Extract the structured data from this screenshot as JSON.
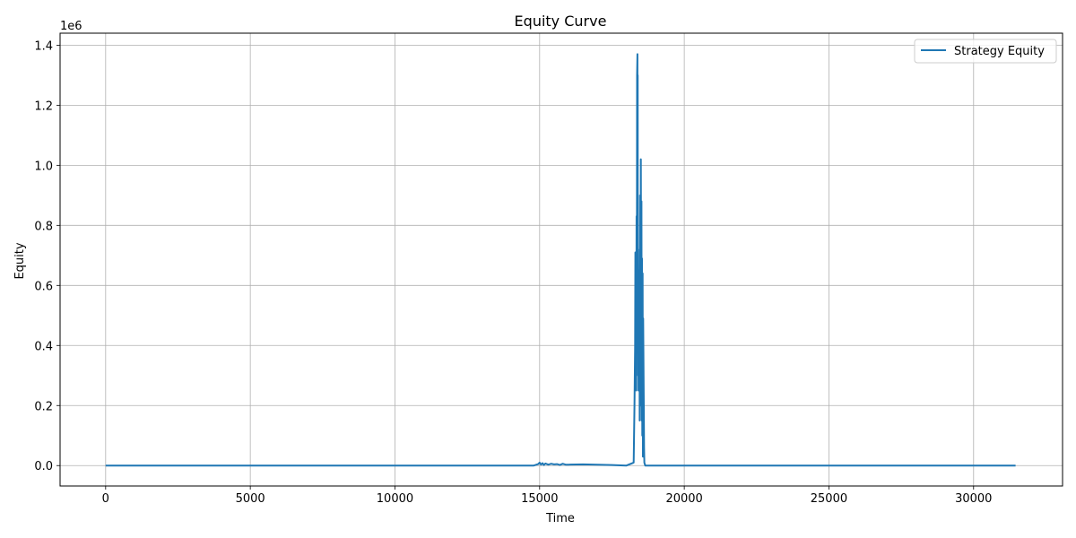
{
  "chart_data": {
    "type": "line",
    "title": "Equity Curve",
    "xlabel": "Time",
    "ylabel": "Equity",
    "y_offset_label": "1e6",
    "xlim": [
      -1575,
      33075
    ],
    "ylim": [
      -68000,
      1440000
    ],
    "xticks": [
      0,
      5000,
      10000,
      15000,
      20000,
      25000,
      30000
    ],
    "xtick_labels": [
      "0",
      "5000",
      "10000",
      "15000",
      "20000",
      "25000",
      "30000"
    ],
    "yticks": [
      0,
      200000,
      400000,
      600000,
      800000,
      1000000,
      1200000,
      1400000
    ],
    "ytick_labels": [
      "0.0",
      "0.2",
      "0.4",
      "0.6",
      "0.8",
      "1.0",
      "1.2",
      "1.4"
    ],
    "grid": true,
    "legend_position": "top-right",
    "colors": {
      "series": "#1f77b4",
      "grid": "#b0b0b0",
      "axis": "#000000"
    },
    "series": [
      {
        "name": "Strategy Equity",
        "x": [
          0,
          14800,
          14950,
          15000,
          15050,
          15100,
          15150,
          15200,
          15300,
          15400,
          15500,
          15600,
          15700,
          15800,
          15900,
          16000,
          16500,
          17000,
          17500,
          18000,
          18250,
          18280,
          18300,
          18310,
          18320,
          18330,
          18340,
          18350,
          18360,
          18370,
          18380,
          18385,
          18390,
          18395,
          18400,
          18405,
          18410,
          18420,
          18430,
          18440,
          18450,
          18460,
          18470,
          18480,
          18490,
          18500,
          18510,
          18520,
          18530,
          18540,
          18550,
          18560,
          18570,
          18580,
          18600,
          18610,
          18620,
          18650,
          19000,
          25000,
          31450
        ],
        "y": [
          0,
          0,
          5000,
          10000,
          3000,
          8000,
          2000,
          7000,
          3000,
          6000,
          4000,
          5000,
          2000,
          6000,
          3000,
          3000,
          4000,
          3000,
          2000,
          0,
          10000,
          200000,
          400000,
          710000,
          300000,
          700000,
          250000,
          830000,
          400000,
          1300000,
          1370000,
          800000,
          1300000,
          600000,
          900000,
          300000,
          720000,
          250000,
          650000,
          350000,
          600000,
          150000,
          560000,
          900000,
          200000,
          1020000,
          400000,
          880000,
          150000,
          690000,
          100000,
          640000,
          30000,
          490000,
          200000,
          60000,
          10000,
          0,
          0,
          0,
          0
        ]
      }
    ]
  }
}
